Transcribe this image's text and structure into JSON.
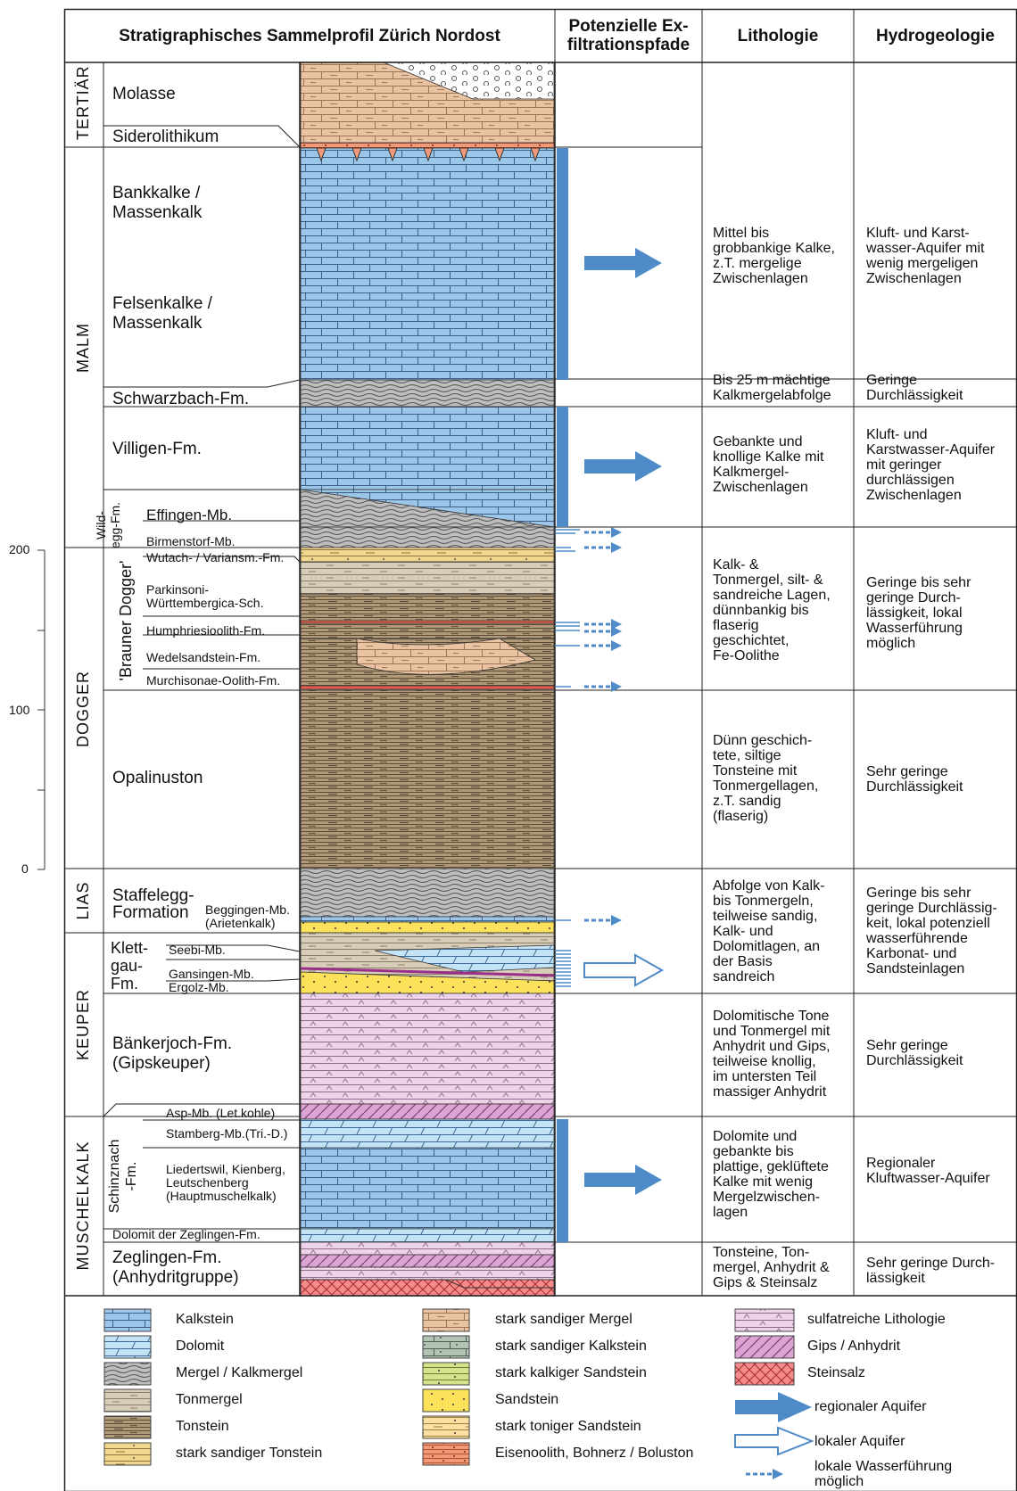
{
  "headers": {
    "profile": "Stratigraphisches Sammelprofil Zürich Nordost",
    "paths_line1": "Potenzielle Ex-",
    "paths_line2": "filtrationspfade",
    "lithology": "Lithologie",
    "hydrogeology": "Hydrogeologie"
  },
  "scale": {
    "t200": "200",
    "t100": "100",
    "t0": "0"
  },
  "eras": {
    "tertiaer": "TERTIÄR",
    "malm": "MALM",
    "dogger": "DOGGER",
    "lias": "LIAS",
    "keuper": "KEUPER",
    "muschelkalk": "MUSCHELKALK"
  },
  "groups": {
    "wildegg1": "Wild-",
    "wildegg2": "egg-Fm.",
    "brauner": "'Brauner Dogger'",
    "klettgau": "Klett-\ngau-\nFm.",
    "schinznach": "Schinznach\n-Fm."
  },
  "units": {
    "molasse": "Molasse",
    "siderolithikum": "Siderolithikum",
    "bankkalke": "Bankkalke /\nMassenkalk",
    "felsenkalke": "Felsenkalke /\nMassenkalk",
    "schwarzbach": "Schwarzbach-Fm.",
    "villigen": "Villigen-Fm.",
    "effingen": "Effingen-Mb.",
    "birmenstorf": "Birmenstorf-Mb.",
    "wutach": "Wutach- / Variansm.-Fm.",
    "parkinsoni": "Parkinsoni-\nWürttembergica-Sch.",
    "humphries": "Humphriesioolith-Fm.",
    "wedelsandstein": "Wedelsandstein-Fm.",
    "murchisonae": "Murchisonae-Oolith-Fm.",
    "opalinuston": "Opalinuston",
    "staffelegg": "Staffelegg-\nFormation",
    "beggingen": "Beggingen-Mb.\n(Arietenkalk)",
    "seebi": "Seebi-Mb.",
    "gansingen": "Gansingen-Mb.",
    "ergolz": "Ergolz-Mb.",
    "baenkerjoch": "Bänkerjoch-Fm.\n(Gipskeuper)",
    "asp": "Asp-Mb. (Let.kohle)",
    "stamberg": "Stamberg-Mb.(Tri.-D.)",
    "liedertswil": "Liedertswil, Kienberg,\nLeutschenberg\n(Hauptmuschelkalk)",
    "zeglingen_dolomit": "Dolomit der Zeglingen-Fm.",
    "zeglingen": "Zeglingen-Fm.\n(Anhydritgruppe)"
  },
  "lithology": {
    "malm_upper": "Mittel bis\ngrobbankige Kalke,\nz.T. mergelige\nZwischenlagen",
    "schwarzbach": "Bis 25 m mächtige\nKalkmergelabfolge",
    "villigen": "Gebankte und\nknollige Kalke mit\nKalkmergel-\nZwischenlagen",
    "brauner": "Kalk- &\nTonmergel, silt- &\nsandreiche Lagen,\ndünnbankig bis\nflaserig\ngeschichtet,\nFe-Oolithe",
    "opalinus": "Dünn geschich-\ntete, siltige\nTonsteine mit\nTonmergellagen,\nz.T. sandig\n(flaserig)",
    "lias_klettgau": "Abfolge von Kalk-\nbis Tonmergeln,\nteilweise sandig,\nKalk- und\nDolomitlagen, an\nder Basis\nsandreich",
    "baenkerjoch": "Dolomitische Tone\nund Tonmergel mit\nAnhydrit und Gips,\nteilweise knollig,\nim untersten Teil\nmassiger Anhydrit",
    "schinznach": "Dolomite und\ngebankte bis\nplattige, geklüftete\nKalke mit wenig\nMergelzwischen-\nlagen",
    "zeglingen": "Tonsteine, Ton-\nmergel, Anhydrit &\nGips & Steinsalz"
  },
  "hydrogeology": {
    "malm_upper": "Kluft- und Karst-\nwasser-Aquifer mit\nwenig mergeligen\nZwischenlagen",
    "schwarzbach": "Geringe\nDurchlässigkeit",
    "villigen": "Kluft- und\nKarstwasser-Aquifer\nmit geringer\ndurchlässigen\nZwischenlagen",
    "brauner": "Geringe bis sehr\ngeringe Durch-\nlässigkeit, lokal\nWasserführung\nmöglich",
    "opalinus": "Sehr geringe\nDurchlässigkeit",
    "lias_klettgau": "Geringe bis sehr\ngeringe Durchlässig-\nkeit, lokal potenziell\nwasserführende\nKarbonat- und\nSandsteinlagen",
    "baenkerjoch": "Sehr geringe\nDurchlässigkeit",
    "schinznach": "Regionaler\nKluftwasser-Aquifer",
    "zeglingen": "Sehr geringe Durch-\nlässigkeit"
  },
  "legend": {
    "kalkstein": "Kalkstein",
    "dolomit": "Dolomit",
    "mergel": "Mergel / Kalkmergel",
    "tonmergel": "Tonmergel",
    "tonstein": "Tonstein",
    "sandiger_tonstein": "stark sandiger Tonstein",
    "sandiger_mergel": "stark sandiger Mergel",
    "sandiger_kalkstein": "stark sandiger Kalkstein",
    "kalkiger_sandstein": "stark kalkiger Sandstein",
    "sandstein": "Sandstein",
    "toniger_sandstein": "stark toniger Sandstein",
    "eisenoolith": "Eisenoolith, Bohnerz / Boluston",
    "sulfat": "sulfatreiche Lithologie",
    "gips": "Gips / Anhydrit",
    "steinsalz": "Steinsalz",
    "regional": "regionaler Aquifer",
    "lokal": "lokaler Aquifer",
    "wasserfuehrung": "lokale Wasserführung\nmöglich"
  },
  "colors": {
    "kalkstein": "#9cc6ea",
    "dolomit": "#c4e3f6",
    "mergel": "#bebebe",
    "tonmergel": "#d8cdb9",
    "tonstein": "#b09a7a",
    "sandiger_tonstein": "#f1d78e",
    "sandiger_mergel": "#e9c3a2",
    "sandiger_kalkstein": "#b1c4b4",
    "kalkiger_sandstein": "#d3e48a",
    "sandstein": "#fbe25a",
    "toniger_sandstein": "#fbe0a2",
    "eisenoolith": "#f19a78",
    "sulfat": "#efd3ea",
    "gips": "#dba4d4",
    "steinsalz": "#f48a8a",
    "aquifer_blue": "#4f8bc9"
  }
}
